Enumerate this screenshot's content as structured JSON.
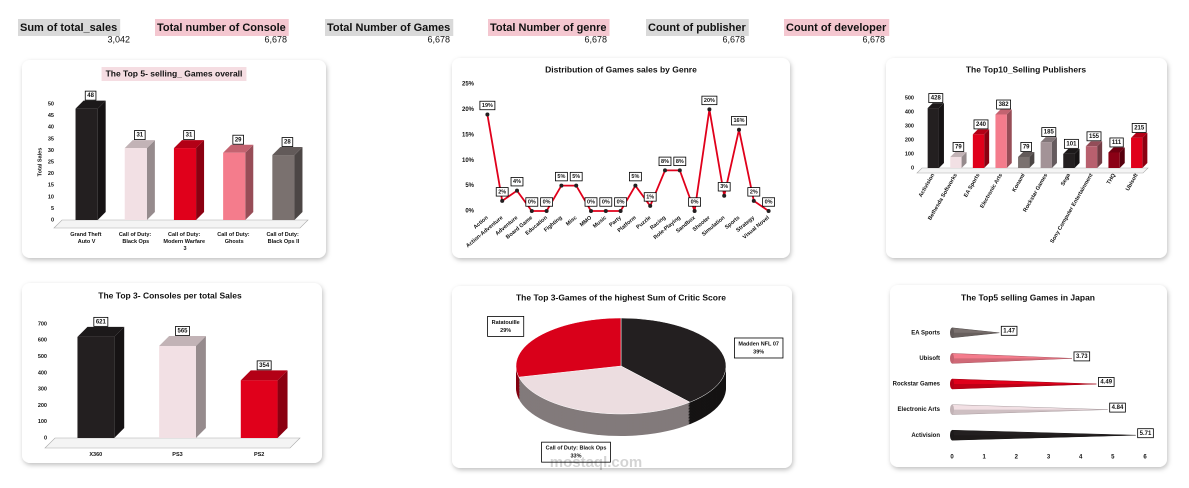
{
  "kpis": [
    {
      "label": "Sum of total_sales",
      "value": "3,042"
    },
    {
      "label": "Total number of Console",
      "value": "6,678"
    },
    {
      "label": "Total Number of Games",
      "value": "6,678"
    },
    {
      "label": "Total Number of genre",
      "value": "6,678"
    },
    {
      "label": "Count of publisher",
      "value": "6,678"
    },
    {
      "label": "Count of developer",
      "value": "6,678"
    }
  ],
  "watermark": "mostaql.com",
  "chart_data": [
    {
      "type": "bar",
      "title": "The Top 5- selling_ Games overall",
      "y_label": "Total Sales",
      "categories": [
        "Grand Theft Auto V",
        "Call of Duty: Black Ops",
        "Call of Duty: Modern Warfare 3",
        "Call of Duty: Ghosts",
        "Call of Duty: Black Ops II"
      ],
      "values": [
        48,
        31,
        31,
        29,
        28
      ],
      "colors": [
        "#231f20",
        "#f2e0e4",
        "#e0001b",
        "#f47c8c",
        "#7a716f"
      ],
      "ylim": [
        0,
        50
      ],
      "yticks": [
        0,
        5,
        10,
        15,
        20,
        25,
        30,
        35,
        40,
        45,
        50
      ]
    },
    {
      "type": "line",
      "title": "Distribution of Games sales by Genre",
      "categories": [
        "Action",
        "Action-Adventure",
        "Adventure",
        "Board Game",
        "Education",
        "Fighting",
        "Misc",
        "MMO",
        "Music",
        "Party",
        "Platform",
        "Puzzle",
        "Racing",
        "Role-Playing",
        "Sandbox",
        "Shooter",
        "Simulation",
        "Sports",
        "Strategy",
        "Visual Novel"
      ],
      "values": [
        19,
        2,
        4,
        0,
        0,
        5,
        5,
        0,
        0,
        0,
        5,
        1,
        8,
        8,
        0,
        20,
        3,
        16,
        2,
        0
      ],
      "value_labels": [
        "19%",
        "2%",
        "4%",
        "0%",
        "0%",
        "5%",
        "5%",
        "0%",
        "0%",
        "0%",
        "5%",
        "1%",
        "8%",
        "8%",
        "0%",
        "20%",
        "3%",
        "16%",
        "2%",
        "0%"
      ],
      "color": "#e0001b",
      "marker_color": "#231f20",
      "ylim": [
        0,
        25
      ],
      "yticks": [
        {
          "value": 0,
          "label": "0%"
        },
        {
          "value": 5,
          "label": "5%"
        },
        {
          "value": 10,
          "label": "10%"
        },
        {
          "value": 15,
          "label": "15%"
        },
        {
          "value": 20,
          "label": "20%"
        },
        {
          "value": 25,
          "label": "25%"
        }
      ]
    },
    {
      "type": "bar",
      "title": "The Top10_Selling Publishers",
      "categories": [
        "Activision",
        "Bethesda Softworks",
        "EA Sports",
        "Electronic Arts",
        "Konami",
        "Rockstar Games",
        "Sega",
        "Sony Computer Entertainment",
        "THQ",
        "Ubisoft"
      ],
      "values": [
        428,
        79,
        240,
        382,
        79,
        185,
        101,
        155,
        111,
        215
      ],
      "colors": [
        "#231f20",
        "#f2e0e4",
        "#e0001b",
        "#f47c8c",
        "#7a716f",
        "#a39397",
        "#231f20",
        "#b8606e",
        "#8b0015",
        "#e0001b"
      ],
      "ylim": [
        0,
        500
      ],
      "yticks": [
        0,
        100,
        200,
        300,
        400,
        500
      ]
    },
    {
      "type": "bar",
      "title": "The Top 3- Consoles per total Sales",
      "categories": [
        "X360",
        "PS3",
        "PS2"
      ],
      "values": [
        621,
        565,
        354
      ],
      "colors": [
        "#231f20",
        "#f2e0e4",
        "#e0001b"
      ],
      "ylim": [
        0,
        700
      ],
      "yticks": [
        0,
        100,
        200,
        300,
        400,
        500,
        600,
        700
      ]
    },
    {
      "type": "pie",
      "title": "The Top 3-Games of the highest Sum of Critic Score",
      "categories": [
        "Madden NFL 07",
        "Call of Duty: Black Ops",
        "Ratatouille"
      ],
      "values": [
        39,
        33,
        29
      ],
      "value_labels": [
        "39%",
        "33%",
        "29%"
      ],
      "colors": [
        "#231f20",
        "#ecdde0",
        "#d9001a"
      ]
    },
    {
      "type": "bar",
      "orientation": "horizontal",
      "title": "The Top5 selling Games in Japan",
      "categories": [
        "EA Sports",
        "Ubisoft",
        "Rockstar Games",
        "Electronic Arts",
        "Activision"
      ],
      "values": [
        1.47,
        3.73,
        4.49,
        4.84,
        5.71
      ],
      "colors": [
        "#7a716f",
        "#f47c8c",
        "#e0001b",
        "#f2e0e4",
        "#231f20"
      ],
      "xlim": [
        0,
        6
      ],
      "xticks": [
        0,
        1,
        2,
        3,
        4,
        5,
        6
      ]
    }
  ]
}
